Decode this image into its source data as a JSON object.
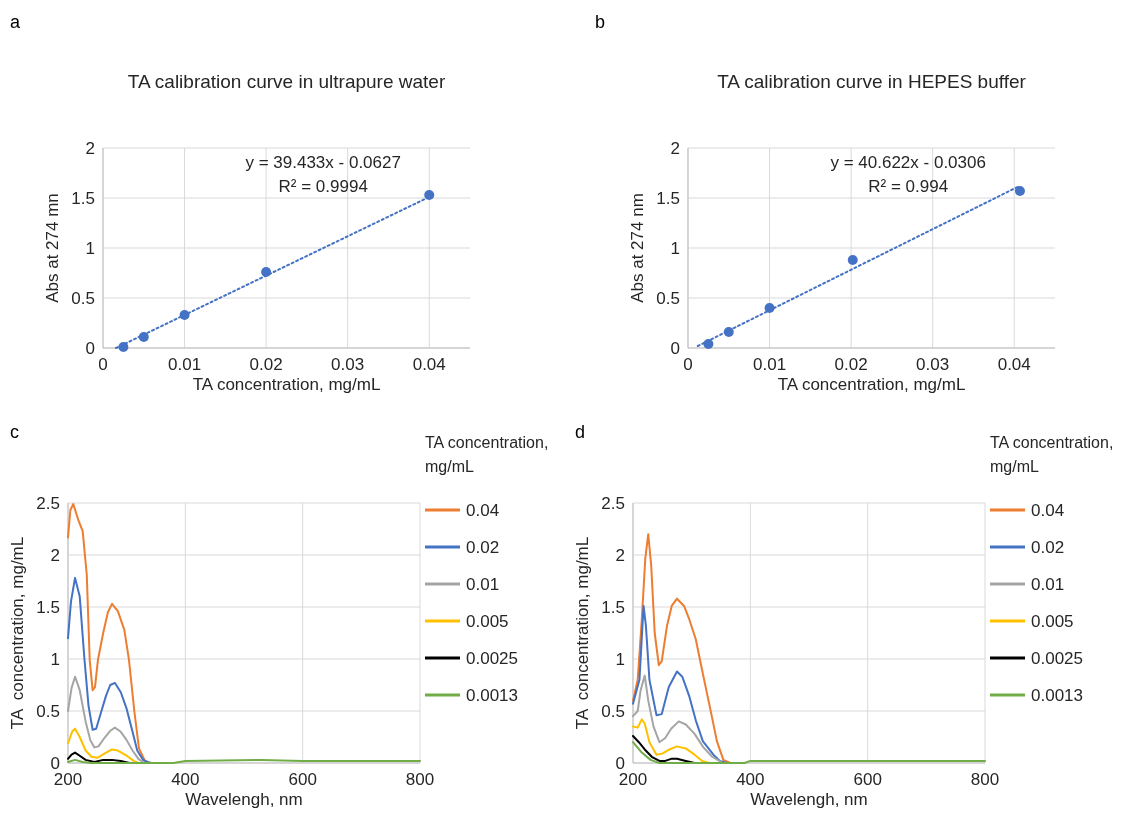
{
  "chart_data": [
    {
      "type": "scatter",
      "title": "TA calibration curve in ultrapure water",
      "xlabel": "TA concentration, mg/mL",
      "ylabel": "Abs at 274 mn",
      "xlim": [
        0,
        0.045
      ],
      "xticks": [
        0,
        0.01,
        0.02,
        0.03,
        0.04
      ],
      "ylim": [
        0,
        2
      ],
      "yticks": [
        0,
        0.5,
        1,
        1.5,
        2
      ],
      "grid": true,
      "marker": "circle",
      "annotations": [
        "a",
        "y = 39.433x - 0.0627",
        "R² = 0.9994"
      ],
      "series": [
        {
          "color": "#4472c4",
          "x": [
            0.0025,
            0.005,
            0.01,
            0.02,
            0.04
          ],
          "values": [
            0.01,
            0.11,
            0.33,
            0.76,
            1.53
          ]
        },
        {
          "type": "line",
          "line_style": "dotted",
          "marker": "none",
          "color": "#4472c4",
          "x": [
            0.0016,
            0.0405
          ],
          "values": [
            0,
            1.53
          ]
        }
      ]
    },
    {
      "type": "scatter",
      "title": "TA calibration curve in HEPES buffer",
      "xlabel": "TA concentration, mg/mL",
      "ylabel": "Abs at 274 nm",
      "xlim": [
        0,
        0.045
      ],
      "xticks": [
        0,
        0.01,
        0.02,
        0.03,
        0.04
      ],
      "ylim": [
        0,
        2
      ],
      "yticks": [
        0,
        0.5,
        1,
        1.5,
        2
      ],
      "grid": true,
      "marker": "circle",
      "annotations": [
        "b",
        "y = 40.622x - 0.0306",
        "R² = 0.994"
      ],
      "series": [
        {
          "color": "#4472c4",
          "x": [
            0.0025,
            0.005,
            0.01,
            0.0202,
            0.0407
          ],
          "values": [
            0.04,
            0.16,
            0.4,
            0.88,
            1.57
          ]
        },
        {
          "type": "line",
          "line_style": "dotted",
          "marker": "none",
          "color": "#4472c4",
          "x": [
            0.0012,
            0.0404
          ],
          "values": [
            0.02,
            1.61
          ]
        }
      ]
    },
    {
      "type": "line",
      "xlabel": "Wavelengh, nm",
      "ylabel": "TA  concentration, mg/mL",
      "legend_title": "TA concentration, mg/mL",
      "legend": "right",
      "xlim": [
        200,
        800
      ],
      "xticks": [
        200,
        400,
        600,
        800
      ],
      "ylim": [
        0,
        2.5
      ],
      "yticks": [
        0,
        0.5,
        1,
        1.5,
        2,
        2.5
      ],
      "grid": true,
      "annotations": [
        "c"
      ],
      "series": [
        {
          "name": "0.04",
          "color": "#ed7d31",
          "x": [
            200,
            204,
            209,
            218,
            225,
            232,
            237,
            242,
            246,
            251,
            260,
            268,
            275,
            285,
            296,
            304,
            313,
            321,
            332,
            344
          ],
          "values": [
            2.17,
            2.43,
            2.49,
            2.33,
            2.23,
            1.81,
            0.99,
            0.7,
            0.73,
            0.99,
            1.25,
            1.45,
            1.53,
            1.46,
            1.28,
            0.99,
            0.5,
            0.14,
            0.01,
            0
          ]
        },
        {
          "name": "0.02",
          "color": "#4472c4",
          "x": [
            200,
            205,
            212,
            220,
            228,
            235,
            242,
            248,
            257,
            265,
            272,
            280,
            290,
            300,
            310,
            318,
            328,
            340
          ],
          "values": [
            1.2,
            1.55,
            1.78,
            1.6,
            1.0,
            0.55,
            0.32,
            0.33,
            0.5,
            0.65,
            0.75,
            0.77,
            0.68,
            0.52,
            0.3,
            0.12,
            0.03,
            0
          ]
        },
        {
          "name": "0.01",
          "color": "#a5a5a5",
          "x": [
            200,
            206,
            212,
            220,
            230,
            238,
            245,
            252,
            262,
            272,
            280,
            290,
            300,
            310,
            320,
            330
          ],
          "values": [
            0.5,
            0.72,
            0.83,
            0.7,
            0.4,
            0.22,
            0.15,
            0.16,
            0.24,
            0.31,
            0.34,
            0.3,
            0.22,
            0.12,
            0.04,
            0
          ]
        },
        {
          "name": "0.005",
          "color": "#ffc000",
          "x": [
            200,
            207,
            212,
            220,
            230,
            240,
            250,
            262,
            275,
            285,
            300,
            312,
            320
          ],
          "values": [
            0.19,
            0.3,
            0.33,
            0.25,
            0.12,
            0.06,
            0.05,
            0.09,
            0.13,
            0.12,
            0.07,
            0.02,
            0
          ]
        },
        {
          "name": "0.0025",
          "color": "#000000",
          "x": [
            200,
            206,
            212,
            220,
            230,
            245,
            260,
            275,
            290,
            305
          ],
          "values": [
            0.04,
            0.08,
            0.1,
            0.07,
            0.03,
            0.01,
            0.03,
            0.03,
            0.02,
            0
          ]
        },
        {
          "name": "0.0013",
          "color": "#70ad47",
          "x": [
            200,
            212,
            225,
            240,
            380,
            400,
            530,
            600,
            800
          ],
          "values": [
            0.01,
            0.03,
            0.01,
            0,
            0,
            0.02,
            0.03,
            0.02,
            0.02
          ]
        }
      ]
    },
    {
      "type": "line",
      "xlabel": "Wavelengh, nm",
      "ylabel": "TA  concentration, mg/mL",
      "legend_title": "TA concentration, mg/mL",
      "legend": "right",
      "xlim": [
        200,
        800
      ],
      "xticks": [
        200,
        400,
        600,
        800
      ],
      "ylim": [
        0,
        2.5
      ],
      "yticks": [
        0,
        0.5,
        1,
        1.5,
        2,
        2.5
      ],
      "grid": true,
      "annotations": [
        "d"
      ],
      "series": [
        {
          "name": "0.04",
          "color": "#ed7d31",
          "x": [
            200,
            208,
            215,
            221,
            226,
            231,
            237,
            244,
            249,
            258,
            266,
            275,
            287,
            296,
            307,
            319,
            331,
            343,
            354,
            366
          ],
          "values": [
            0.6,
            0.8,
            1.38,
            1.97,
            2.2,
            1.9,
            1.25,
            0.94,
            0.98,
            1.32,
            1.51,
            1.58,
            1.51,
            1.38,
            1.19,
            0.86,
            0.54,
            0.21,
            0.03,
            0
          ]
        },
        {
          "name": "0.02",
          "color": "#4472c4",
          "x": [
            200,
            211,
            218,
            222,
            228,
            240,
            249,
            261,
            275,
            284,
            296,
            307,
            319,
            337,
            348,
            360
          ],
          "values": [
            0.57,
            0.8,
            1.51,
            1.32,
            0.8,
            0.46,
            0.47,
            0.73,
            0.88,
            0.83,
            0.64,
            0.41,
            0.21,
            0.08,
            0.02,
            0
          ]
        },
        {
          "name": "0.01",
          "color": "#a5a5a5",
          "x": [
            200,
            208,
            213,
            220,
            226,
            235,
            245,
            255,
            265,
            278,
            290,
            305,
            320,
            335,
            350
          ],
          "values": [
            0.45,
            0.5,
            0.7,
            0.84,
            0.6,
            0.35,
            0.2,
            0.24,
            0.33,
            0.4,
            0.37,
            0.28,
            0.15,
            0.06,
            0.01
          ]
        },
        {
          "name": "0.005",
          "color": "#ffc000",
          "x": [
            200,
            208,
            215,
            220,
            228,
            240,
            250,
            262,
            275,
            290,
            305,
            318,
            330
          ],
          "values": [
            0.35,
            0.34,
            0.42,
            0.38,
            0.2,
            0.08,
            0.09,
            0.13,
            0.16,
            0.14,
            0.08,
            0.02,
            0
          ]
        },
        {
          "name": "0.0025",
          "color": "#000000",
          "x": [
            200,
            210,
            220,
            232,
            245,
            255,
            265,
            275,
            290,
            305
          ],
          "values": [
            0.26,
            0.2,
            0.13,
            0.06,
            0.02,
            0.02,
            0.04,
            0.04,
            0.02,
            0
          ]
        },
        {
          "name": "0.0013",
          "color": "#70ad47",
          "x": [
            200,
            215,
            230,
            245,
            390,
            400,
            600,
            800
          ],
          "values": [
            0.2,
            0.1,
            0.03,
            0,
            0,
            0.02,
            0.02,
            0.02
          ]
        }
      ]
    }
  ]
}
